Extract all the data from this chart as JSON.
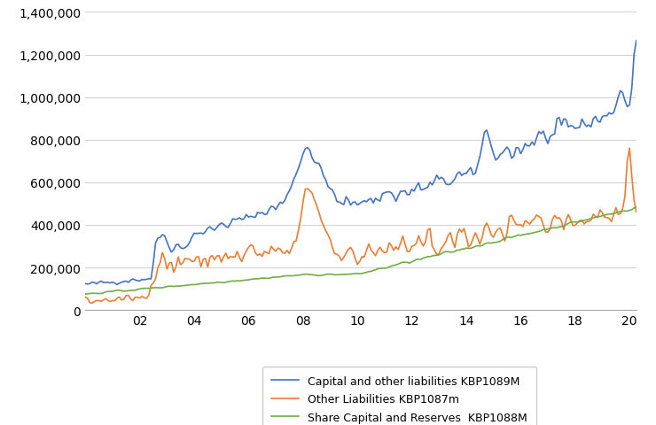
{
  "title": "",
  "blue_label": "Capital and other liabilities KBP1089M",
  "orange_label": "Other Liabilities KBP1087m",
  "green_label": "Share Capital and Reserves  KBP1088M",
  "blue_color": "#4472C4",
  "orange_color": "#ED7D31",
  "green_color": "#70AD47",
  "ylim": [
    0,
    1400000
  ],
  "yticks": [
    0,
    200000,
    400000,
    600000,
    800000,
    1000000,
    1200000,
    1400000
  ],
  "xtick_labels": [
    "02",
    "04",
    "06",
    "08",
    "10",
    "12",
    "14",
    "16",
    "18",
    "20"
  ],
  "xtick_positions": [
    24,
    48,
    72,
    96,
    120,
    144,
    168,
    192,
    216,
    240
  ],
  "n_months": 244,
  "background_color": "#FFFFFF",
  "line_width": 1.2,
  "legend_fontsize": 9,
  "tick_fontsize": 10
}
